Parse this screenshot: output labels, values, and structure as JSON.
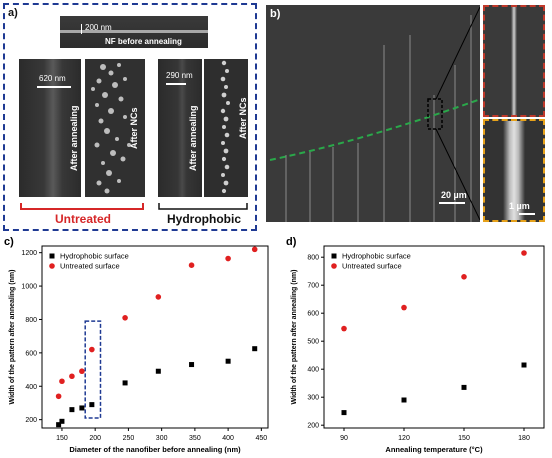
{
  "panel_a": {
    "label": "a)",
    "top_image": {
      "scale": "200 nm",
      "caption": "NF before annealing"
    },
    "untreated": {
      "scale": "620 nm",
      "caption_annealing": "After annealing",
      "caption_ncs": "After NCs",
      "group_label": "Untreated"
    },
    "hydrophobic": {
      "scale": "290 nm",
      "caption_annealing": "After annealing",
      "caption_ncs": "After NCs",
      "group_label": "Hydrophobic"
    },
    "colors": {
      "frame": "#1f3a93",
      "untreated": "#d62728"
    }
  },
  "panel_b": {
    "label": "b)",
    "scale_main": "20 µm",
    "scale_inset": "1 µm",
    "colors": {
      "trace": "#2aa84a",
      "inset_top": "#c0392b",
      "inset_bottom": "#e6a11a"
    }
  },
  "chart_data": [
    {
      "type": "scatter",
      "label": "c)",
      "xlabel": "Diameter of the nanofiber before annealing (nm)",
      "ylabel": "Width of the pattern after annealing (nm)",
      "xlim": [
        120,
        460
      ],
      "ylim": [
        150,
        1240
      ],
      "xticks": [
        150,
        200,
        250,
        300,
        350,
        400,
        450
      ],
      "yticks": [
        200,
        400,
        600,
        800,
        1000,
        1200
      ],
      "legend_position": "top-left",
      "series": [
        {
          "name": "Hydrophobic surface",
          "color": "#000000",
          "marker": "square",
          "x": [
            145,
            150,
            165,
            180,
            195,
            245,
            295,
            345,
            400,
            440
          ],
          "y": [
            170,
            190,
            260,
            270,
            290,
            420,
            490,
            530,
            550,
            625
          ]
        },
        {
          "name": "Untreated surface",
          "color": "#e02020",
          "marker": "circle",
          "x": [
            145,
            150,
            165,
            180,
            195,
            245,
            295,
            345,
            400,
            440
          ],
          "y": [
            340,
            430,
            460,
            490,
            620,
            810,
            935,
            1125,
            1165,
            1220
          ]
        }
      ],
      "highlight_box": {
        "x": [
          185,
          208
        ],
        "y": [
          210,
          790
        ],
        "color": "#1f3a93"
      }
    },
    {
      "type": "scatter",
      "label": "d)",
      "xlabel": "Annealing temperature (°C)",
      "ylabel": "Width of the pattern after annealing (nm)",
      "xlim": [
        80,
        190
      ],
      "ylim": [
        190,
        840
      ],
      "xticks": [
        90,
        120,
        150,
        180
      ],
      "yticks": [
        200,
        300,
        400,
        500,
        600,
        700,
        800
      ],
      "legend_position": "top-left",
      "series": [
        {
          "name": "Hydrophobic surface",
          "color": "#000000",
          "marker": "square",
          "x": [
            90,
            120,
            150,
            180
          ],
          "y": [
            245,
            290,
            335,
            415
          ]
        },
        {
          "name": "Untreated surface",
          "color": "#e02020",
          "marker": "circle",
          "x": [
            90,
            120,
            150,
            180
          ],
          "y": [
            545,
            620,
            730,
            815
          ]
        }
      ]
    }
  ]
}
